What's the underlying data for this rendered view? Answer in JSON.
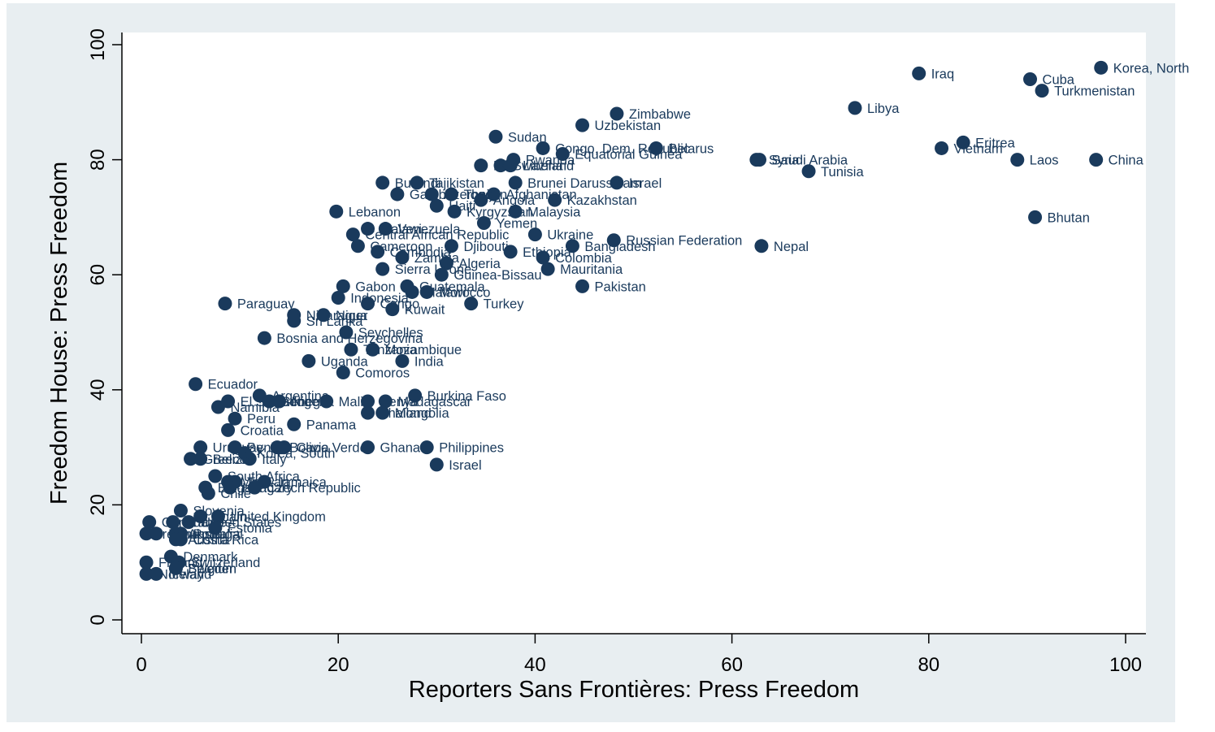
{
  "chart_data": {
    "type": "scatter",
    "xlabel": "Reporters Sans Frontières: Press Freedom",
    "ylabel": "Freedom House: Press Freedom",
    "xlim": [
      0,
      100
    ],
    "ylim": [
      0,
      100
    ],
    "x_ticks": [
      0,
      20,
      40,
      60,
      80,
      100
    ],
    "y_ticks": [
      0,
      20,
      40,
      60,
      80,
      100
    ],
    "grid": false,
    "colors": {
      "frame": "#e8eef1",
      "plot": "#ffffff",
      "marker": "#1a3a5c",
      "axis": "#000000"
    },
    "points": [
      {
        "label": "Korea, North",
        "x": 97.5,
        "y": 96
      },
      {
        "label": "Cuba",
        "x": 90.3,
        "y": 94
      },
      {
        "label": "Turkmenistan",
        "x": 91.5,
        "y": 92
      },
      {
        "label": "Iraq",
        "x": 79.0,
        "y": 95
      },
      {
        "label": "Libya",
        "x": 72.5,
        "y": 89
      },
      {
        "label": "Eritrea",
        "x": 83.5,
        "y": 83
      },
      {
        "label": "Vietnam",
        "x": 81.3,
        "y": 82
      },
      {
        "label": "Laos",
        "x": 89.0,
        "y": 80
      },
      {
        "label": "China",
        "x": 97.0,
        "y": 80
      },
      {
        "label": "Bhutan",
        "x": 90.8,
        "y": 70
      },
      {
        "label": "Saudi Arabia",
        "x": 62.8,
        "y": 80
      },
      {
        "label": "Syria",
        "x": 62.5,
        "y": 80
      },
      {
        "label": "Tunisia",
        "x": 67.8,
        "y": 78
      },
      {
        "label": "Nepal",
        "x": 63.0,
        "y": 65
      },
      {
        "label": "Zimbabwe",
        "x": 48.3,
        "y": 88
      },
      {
        "label": "Uzbekistan",
        "x": 44.8,
        "y": 86
      },
      {
        "label": "Sudan",
        "x": 36.0,
        "y": 84
      },
      {
        "label": "Congo, Dem. Republic",
        "x": 40.8,
        "y": 82
      },
      {
        "label": "Belarus",
        "x": 52.3,
        "y": 82
      },
      {
        "label": "Equatorial Guinea",
        "x": 42.8,
        "y": 81
      },
      {
        "label": "Rwanda",
        "x": 37.8,
        "y": 80
      },
      {
        "label": "Swaziland",
        "x": 36.5,
        "y": 79
      },
      {
        "label": "Liberia",
        "x": 37.5,
        "y": 79
      },
      {
        "label": "Iran",
        "x": 34.5,
        "y": 79
      },
      {
        "label": "Israel",
        "x": 48.3,
        "y": 76
      },
      {
        "label": "Burundi",
        "x": 24.5,
        "y": 76
      },
      {
        "label": "Tajikistan",
        "x": 28.0,
        "y": 76
      },
      {
        "label": "Brunei Darussalam",
        "x": 38.0,
        "y": 76
      },
      {
        "label": "Gambia",
        "x": 26.0,
        "y": 74
      },
      {
        "label": "Azerbaijan",
        "x": 29.5,
        "y": 74
      },
      {
        "label": "Afghanistan",
        "x": 35.8,
        "y": 74
      },
      {
        "label": "Togo",
        "x": 31.5,
        "y": 74
      },
      {
        "label": "Kazakhstan",
        "x": 42.0,
        "y": 73
      },
      {
        "label": "Angola",
        "x": 34.5,
        "y": 73
      },
      {
        "label": "Haiti",
        "x": 30.0,
        "y": 72
      },
      {
        "label": "Kyrgyzstan",
        "x": 31.8,
        "y": 71
      },
      {
        "label": "Malaysia",
        "x": 38.0,
        "y": 71
      },
      {
        "label": "Lebanon",
        "x": 19.8,
        "y": 71
      },
      {
        "label": "Yemen",
        "x": 34.8,
        "y": 69
      },
      {
        "label": "Venezuela",
        "x": 24.8,
        "y": 68
      },
      {
        "label": "Malawi",
        "x": 23.0,
        "y": 68
      },
      {
        "label": "Central African Republic",
        "x": 21.5,
        "y": 67
      },
      {
        "label": "Ukraine",
        "x": 40.0,
        "y": 67
      },
      {
        "label": "Cameroon",
        "x": 22.0,
        "y": 65
      },
      {
        "label": "Djibouti",
        "x": 31.5,
        "y": 65
      },
      {
        "label": "Bangladesh",
        "x": 43.8,
        "y": 65
      },
      {
        "label": "Russian Federation",
        "x": 48.0,
        "y": 66
      },
      {
        "label": "Ethiopia",
        "x": 37.5,
        "y": 64
      },
      {
        "label": "Cambodia",
        "x": 24.0,
        "y": 64
      },
      {
        "label": "Zambia",
        "x": 26.5,
        "y": 63
      },
      {
        "label": "Colombia",
        "x": 40.8,
        "y": 63
      },
      {
        "label": "Algeria",
        "x": 31.0,
        "y": 62
      },
      {
        "label": "Sierra Leone",
        "x": 24.5,
        "y": 61
      },
      {
        "label": "Mauritania",
        "x": 41.3,
        "y": 61
      },
      {
        "label": "Guinea-Bissau",
        "x": 30.5,
        "y": 60
      },
      {
        "label": "Pakistan",
        "x": 44.8,
        "y": 58
      },
      {
        "label": "Gabon",
        "x": 20.5,
        "y": 58
      },
      {
        "label": "Guatemala",
        "x": 27.0,
        "y": 58
      },
      {
        "label": "Morocco",
        "x": 29.0,
        "y": 57
      },
      {
        "label": "Malawi",
        "x": 27.5,
        "y": 57
      },
      {
        "label": "Paraguay",
        "x": 8.5,
        "y": 55
      },
      {
        "label": "Indonesia",
        "x": 20.0,
        "y": 56
      },
      {
        "label": "Congo",
        "x": 23.0,
        "y": 55
      },
      {
        "label": "Kuwait",
        "x": 25.5,
        "y": 54
      },
      {
        "label": "Turkey",
        "x": 33.5,
        "y": 55
      },
      {
        "label": "Nicaragua",
        "x": 15.5,
        "y": 53
      },
      {
        "label": "Niger",
        "x": 18.5,
        "y": 53
      },
      {
        "label": "Sri Lanka",
        "x": 15.5,
        "y": 52
      },
      {
        "label": "Seychelles",
        "x": 20.8,
        "y": 50
      },
      {
        "label": "Bosnia and Herzegovina",
        "x": 12.5,
        "y": 49
      },
      {
        "label": "Tanzania",
        "x": 21.3,
        "y": 47
      },
      {
        "label": "Mozambique",
        "x": 23.5,
        "y": 47
      },
      {
        "label": "Uganda",
        "x": 17.0,
        "y": 45
      },
      {
        "label": "India",
        "x": 26.5,
        "y": 45
      },
      {
        "label": "Comoros",
        "x": 20.5,
        "y": 43
      },
      {
        "label": "Ecuador",
        "x": 5.5,
        "y": 41
      },
      {
        "label": "Argentina",
        "x": 12.0,
        "y": 39
      },
      {
        "label": "Burkina Faso",
        "x": 27.8,
        "y": 39
      },
      {
        "label": "El Salvador",
        "x": 8.8,
        "y": 38
      },
      {
        "label": "Senegal",
        "x": 13.0,
        "y": 38
      },
      {
        "label": "Nigeria",
        "x": 14.0,
        "y": 38
      },
      {
        "label": "Mali",
        "x": 18.8,
        "y": 38
      },
      {
        "label": "Kenya",
        "x": 23.0,
        "y": 38
      },
      {
        "label": "Madagascar",
        "x": 24.8,
        "y": 38
      },
      {
        "label": "Namibia",
        "x": 7.8,
        "y": 37
      },
      {
        "label": "Thailand",
        "x": 23.0,
        "y": 36
      },
      {
        "label": "Mongolia",
        "x": 24.5,
        "y": 36
      },
      {
        "label": "Peru",
        "x": 9.5,
        "y": 35
      },
      {
        "label": "Panama",
        "x": 15.5,
        "y": 34
      },
      {
        "label": "Croatia",
        "x": 8.8,
        "y": 33
      },
      {
        "label": "Uruguay",
        "x": 6.0,
        "y": 30
      },
      {
        "label": "Benin",
        "x": 9.5,
        "y": 30
      },
      {
        "label": "Bolivia",
        "x": 13.8,
        "y": 30
      },
      {
        "label": "Cape Verde",
        "x": 14.5,
        "y": 30
      },
      {
        "label": "Ghana",
        "x": 23.0,
        "y": 30
      },
      {
        "label": "Philippines",
        "x": 29.0,
        "y": 30
      },
      {
        "label": "Korea, South",
        "x": 10.5,
        "y": 29
      },
      {
        "label": "Greece",
        "x": 5.0,
        "y": 28
      },
      {
        "label": "Italy",
        "x": 11.0,
        "y": 28
      },
      {
        "label": "Belize",
        "x": 6.0,
        "y": 28
      },
      {
        "label": "Israel",
        "x": 30.0,
        "y": 27
      },
      {
        "label": "South Africa",
        "x": 7.5,
        "y": 25
      },
      {
        "label": "Mali",
        "x": 8.8,
        "y": 24
      },
      {
        "label": "Taiwan",
        "x": 9.5,
        "y": 24
      },
      {
        "label": "Jamaica",
        "x": 12.5,
        "y": 24
      },
      {
        "label": "Bulgaria",
        "x": 6.5,
        "y": 23
      },
      {
        "label": "Czech Republic",
        "x": 11.5,
        "y": 23
      },
      {
        "label": "Hungary",
        "x": 9.0,
        "y": 23
      },
      {
        "label": "Chile",
        "x": 6.8,
        "y": 22
      },
      {
        "label": "Slovenia",
        "x": 4.0,
        "y": 19
      },
      {
        "label": "United Kingdom",
        "x": 7.8,
        "y": 18
      },
      {
        "label": "Spain",
        "x": 6.0,
        "y": 18
      },
      {
        "label": "Canada",
        "x": 0.8,
        "y": 17
      },
      {
        "label": "United States",
        "x": 4.8,
        "y": 17
      },
      {
        "label": "France",
        "x": 3.2,
        "y": 17
      },
      {
        "label": "Lithuania",
        "x": 1.5,
        "y": 15
      },
      {
        "label": "Estonia",
        "x": 7.5,
        "y": 16
      },
      {
        "label": "Ireland",
        "x": 0.5,
        "y": 15
      },
      {
        "label": "Australia",
        "x": 3.5,
        "y": 15
      },
      {
        "label": "Portugal",
        "x": 4.0,
        "y": 15
      },
      {
        "label": "Austria",
        "x": 3.5,
        "y": 14
      },
      {
        "label": "Costa Rica",
        "x": 4.0,
        "y": 14
      },
      {
        "label": "Denmark",
        "x": 3.0,
        "y": 11
      },
      {
        "label": "Finland",
        "x": 0.5,
        "y": 10
      },
      {
        "label": "Switzerland",
        "x": 3.8,
        "y": 10
      },
      {
        "label": "Belgium",
        "x": 3.5,
        "y": 9
      },
      {
        "label": "Norway",
        "x": 0.5,
        "y": 8
      },
      {
        "label": "Iceland",
        "x": 1.5,
        "y": 8
      },
      {
        "label": "Sweden",
        "x": 3.5,
        "y": 9
      }
    ]
  }
}
